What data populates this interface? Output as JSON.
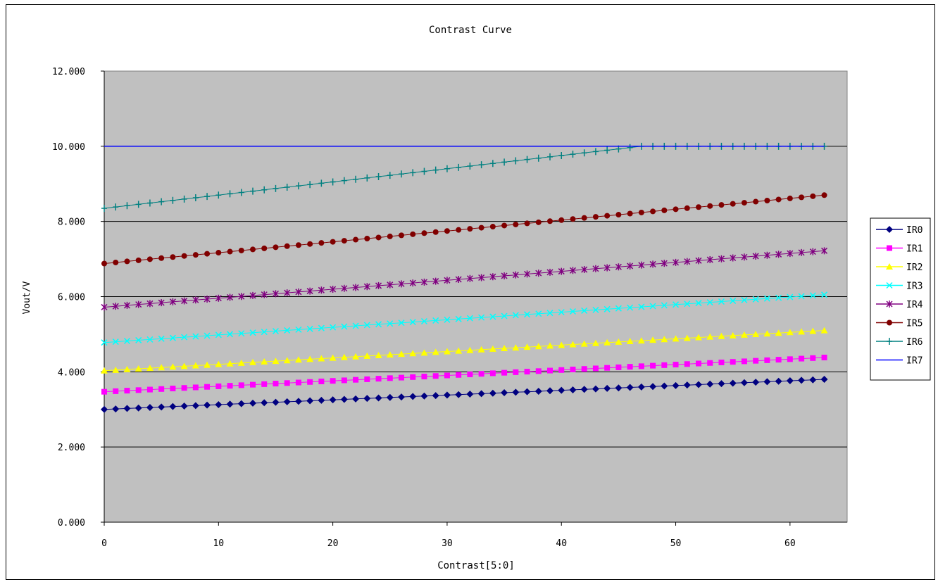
{
  "chart_data": {
    "type": "line",
    "title": "Contrast Curve",
    "xlabel": "Contrast[5:0]",
    "ylabel": "Vout/V",
    "xlim": [
      0,
      65
    ],
    "ylim": [
      0,
      12
    ],
    "x_ticks": [
      0,
      10,
      20,
      30,
      40,
      50,
      60
    ],
    "y_ticks": [
      0,
      2,
      4,
      6,
      8,
      10,
      12
    ],
    "y_tick_labels": [
      "0.000",
      "2.000",
      "4.000",
      "6.000",
      "8.000",
      "10.000",
      "12.000"
    ],
    "grid": "horizontal",
    "plot_background": "#c0c0c0",
    "legend_position": "right",
    "series": [
      {
        "name": "IR0",
        "color": "#000080",
        "marker": "diamond",
        "start": 3.0,
        "end": 3.8
      },
      {
        "name": "IR1",
        "color": "#ff00ff",
        "marker": "square",
        "start": 3.47,
        "end": 4.38
      },
      {
        "name": "IR2",
        "color": "#ffff00",
        "marker": "triangle",
        "start": 4.03,
        "end": 5.1
      },
      {
        "name": "IR3",
        "color": "#00ffff",
        "marker": "x",
        "start": 4.78,
        "end": 6.05
      },
      {
        "name": "IR4",
        "color": "#800080",
        "marker": "star",
        "start": 5.72,
        "end": 7.22
      },
      {
        "name": "IR5",
        "color": "#800000",
        "marker": "circle",
        "start": 6.88,
        "end": 8.7
      },
      {
        "name": "IR6",
        "color": "#008080",
        "marker": "plus",
        "start": 8.35,
        "end": 10.0,
        "plateau_from": 47
      },
      {
        "name": "IR7",
        "color": "#0000ff",
        "marker": "none",
        "start": 10.0,
        "end": 10.0
      }
    ]
  }
}
